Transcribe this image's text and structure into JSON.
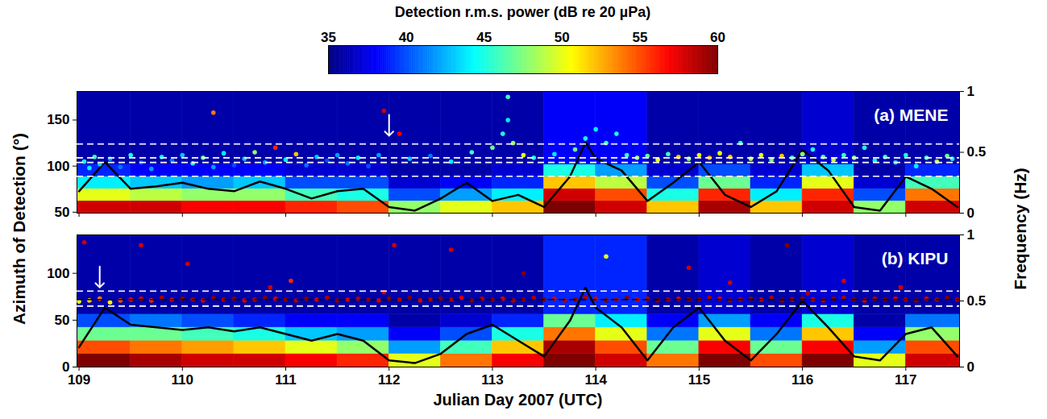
{
  "colorbar": {
    "label": "Detection r.m.s. power (dB re 20 µPa)",
    "range": [
      35,
      60
    ],
    "ticks": [
      35,
      40,
      45,
      50,
      55,
      60
    ]
  },
  "ylabel": "Azimuth of Detection (°)",
  "y2label": "Frequency (Hz)",
  "chart_data": [
    {
      "type": "scatter",
      "title": "(a) MENE",
      "xlim": [
        108.98,
        117.52
      ],
      "xticks": [
        109,
        110,
        111,
        112,
        113,
        114,
        115,
        116,
        117
      ],
      "ylim": [
        49,
        181
      ],
      "yticks": [
        50,
        100,
        150
      ],
      "y2lim": [
        0,
        1
      ],
      "y2ticks": [
        0,
        0.5,
        1
      ],
      "tick_labels": "y",
      "spectrogram": {
        "x_edges": [
          108.98,
          109.5,
          110,
          110.5,
          111,
          111.5,
          112,
          112.5,
          113,
          113.5,
          114,
          114.5,
          115,
          115.5,
          116,
          116.5,
          117,
          117.52
        ],
        "y2_edges": [
          0,
          0.1,
          0.2,
          0.3,
          0.4,
          1
        ],
        "cells": [
          [
            58,
            58,
            57,
            57,
            56,
            55,
            48,
            50,
            52,
            60,
            58,
            52,
            59,
            52,
            58,
            48,
            58
          ],
          [
            50,
            49,
            48,
            48,
            46,
            45,
            40,
            42,
            44,
            58,
            55,
            45,
            56,
            44,
            56,
            40,
            54
          ],
          [
            44,
            43,
            42,
            43,
            40,
            40,
            37,
            38,
            39,
            52,
            49,
            40,
            47,
            39,
            50,
            37,
            46
          ],
          [
            39,
            38,
            38,
            38,
            37,
            37,
            36,
            36,
            37,
            45,
            42,
            37,
            40,
            37,
            43,
            36,
            39
          ],
          [
            36,
            36,
            36,
            36,
            36,
            36,
            36,
            36,
            36,
            38,
            38,
            36,
            36,
            36,
            37,
            36,
            36
          ]
        ]
      },
      "frequency_line": {
        "axis": "y2",
        "color": "#000000",
        "x": [
          109.0,
          109.25,
          109.5,
          109.75,
          110.0,
          110.25,
          110.5,
          110.75,
          111.0,
          111.25,
          111.5,
          111.75,
          112.0,
          112.25,
          112.5,
          112.75,
          113.0,
          113.25,
          113.5,
          113.75,
          113.9,
          114.0,
          114.25,
          114.5,
          114.75,
          115.0,
          115.25,
          115.5,
          115.75,
          116.0,
          116.25,
          116.5,
          116.75,
          117.0,
          117.25,
          117.5
        ],
        "values": [
          0.18,
          0.42,
          0.2,
          0.22,
          0.25,
          0.2,
          0.18,
          0.26,
          0.2,
          0.12,
          0.18,
          0.2,
          0.05,
          0.02,
          0.12,
          0.25,
          0.1,
          0.15,
          0.05,
          0.3,
          0.58,
          0.45,
          0.35,
          0.1,
          0.25,
          0.42,
          0.15,
          0.05,
          0.18,
          0.52,
          0.35,
          0.05,
          0.02,
          0.3,
          0.2,
          0.05
        ]
      },
      "detections": {
        "x": [
          109.05,
          109.1,
          109.15,
          109.2,
          109.3,
          109.4,
          109.5,
          109.6,
          109.7,
          109.8,
          109.9,
          110.0,
          110.1,
          110.2,
          110.3,
          110.4,
          110.5,
          110.6,
          110.7,
          110.8,
          110.9,
          111.0,
          111.1,
          111.2,
          111.3,
          111.4,
          111.5,
          111.6,
          111.7,
          111.8,
          111.9,
          112.1,
          112.2,
          112.4,
          112.6,
          112.8,
          113.0,
          113.1,
          113.15,
          113.2,
          113.3,
          113.4,
          113.6,
          113.8,
          113.9,
          114.0,
          114.1,
          114.2,
          114.3,
          114.4,
          114.5,
          114.6,
          114.7,
          114.8,
          114.9,
          115.0,
          115.1,
          115.2,
          115.3,
          115.4,
          115.5,
          115.6,
          115.7,
          115.8,
          115.9,
          116.0,
          116.1,
          116.2,
          116.3,
          116.4,
          116.5,
          116.6,
          116.7,
          116.8,
          116.9,
          117.0,
          117.1,
          117.2,
          117.3,
          117.4,
          117.45,
          110.3,
          113.15,
          111.95
        ],
        "azimuth": [
          105,
          98,
          110,
          102,
          108,
          99,
          112,
          104,
          97,
          110,
          106,
          112,
          103,
          109,
          99,
          114,
          101,
          108,
          115,
          104,
          120,
          107,
          113,
          101,
          110,
          106,
          112,
          103,
          109,
          100,
          112,
          135,
          108,
          111,
          105,
          115,
          120,
          135,
          150,
          125,
          112,
          109,
          113,
          118,
          130,
          140,
          125,
          135,
          112,
          109,
          111,
          107,
          113,
          110,
          108,
          112,
          109,
          114,
          110,
          125,
          108,
          112,
          107,
          111,
          109,
          113,
          118,
          110,
          107,
          112,
          109,
          120,
          106,
          110,
          104,
          112,
          100,
          109,
          105,
          111,
          108,
          158,
          175,
          160
        ],
        "power": [
          45,
          44,
          46,
          43,
          42,
          41,
          45,
          40,
          42,
          44,
          41,
          43,
          45,
          47,
          42,
          44,
          40,
          43,
          48,
          42,
          56,
          44,
          52,
          41,
          43,
          40,
          42,
          41,
          44,
          40,
          42,
          57,
          43,
          41,
          44,
          46,
          47,
          45,
          44,
          48,
          50,
          45,
          44,
          47,
          45,
          44,
          46,
          45,
          46,
          48,
          47,
          50,
          46,
          52,
          48,
          51,
          53,
          50,
          52,
          46,
          49,
          50,
          47,
          52,
          46,
          48,
          45,
          47,
          49,
          46,
          48,
          45,
          44,
          46,
          43,
          45,
          44,
          46,
          49,
          47,
          45,
          54,
          46,
          58
        ]
      },
      "reference_lines": [
        {
          "values": [
            89,
            104,
            109,
            124
          ],
          "color": "#ffffff",
          "line_style": "dashed"
        }
      ],
      "arrow": {
        "x": 112.0,
        "y": 133
      }
    },
    {
      "type": "scatter",
      "title": "(b) KIPU",
      "xlabel": "Julian Day 2007 (UTC)",
      "xlim": [
        108.98,
        117.52
      ],
      "xticks": [
        109,
        110,
        111,
        112,
        113,
        114,
        115,
        116,
        117
      ],
      "ylim": [
        0,
        141
      ],
      "yticks": [
        0,
        50,
        100
      ],
      "y2lim": [
        0,
        1
      ],
      "y2ticks": [
        0,
        0.5,
        1
      ],
      "spectrogram": {
        "x_edges": [
          108.98,
          109.5,
          110,
          110.5,
          111,
          111.5,
          112,
          112.5,
          113,
          113.5,
          114,
          114.5,
          115,
          115.5,
          116,
          116.5,
          117,
          117.52
        ],
        "y2_edges": [
          0,
          0.1,
          0.2,
          0.3,
          0.4,
          1
        ],
        "cells": [
          [
            60,
            59,
            58,
            58,
            57,
            56,
            50,
            54,
            57,
            60,
            58,
            54,
            60,
            55,
            60,
            50,
            58
          ],
          [
            55,
            54,
            53,
            52,
            50,
            48,
            42,
            46,
            52,
            59,
            55,
            47,
            57,
            47,
            57,
            42,
            55
          ],
          [
            47,
            47,
            46,
            45,
            43,
            42,
            38,
            40,
            45,
            54,
            50,
            41,
            50,
            41,
            52,
            38,
            48
          ],
          [
            40,
            41,
            40,
            39,
            38,
            38,
            36,
            37,
            39,
            47,
            44,
            38,
            42,
            38,
            45,
            36,
            41
          ],
          [
            36,
            36,
            36,
            36,
            36,
            36,
            36,
            36,
            36,
            39,
            39,
            36,
            37,
            36,
            37,
            36,
            36
          ]
        ]
      },
      "frequency_line": {
        "axis": "y2",
        "color": "#000000",
        "x": [
          109.0,
          109.25,
          109.5,
          109.75,
          110.0,
          110.25,
          110.5,
          110.75,
          111.0,
          111.25,
          111.5,
          111.75,
          112.0,
          112.25,
          112.5,
          112.75,
          113.0,
          113.25,
          113.5,
          113.75,
          113.9,
          114.0,
          114.25,
          114.5,
          114.75,
          115.0,
          115.25,
          115.5,
          115.75,
          116.0,
          116.25,
          116.5,
          116.75,
          117.0,
          117.25,
          117.5
        ],
        "values": [
          0.15,
          0.45,
          0.32,
          0.3,
          0.28,
          0.3,
          0.27,
          0.3,
          0.25,
          0.2,
          0.25,
          0.2,
          0.05,
          0.03,
          0.1,
          0.25,
          0.32,
          0.2,
          0.08,
          0.35,
          0.6,
          0.45,
          0.3,
          0.05,
          0.3,
          0.45,
          0.2,
          0.05,
          0.25,
          0.5,
          0.3,
          0.08,
          0.05,
          0.25,
          0.3,
          0.08
        ]
      },
      "detections": {
        "x": [
          109.0,
          109.1,
          109.2,
          109.3,
          109.4,
          109.5,
          109.6,
          109.7,
          109.8,
          109.9,
          110.0,
          110.1,
          110.2,
          110.3,
          110.4,
          110.5,
          110.6,
          110.7,
          110.8,
          110.9,
          111.0,
          111.1,
          111.2,
          111.3,
          111.4,
          111.5,
          111.6,
          111.7,
          111.8,
          111.9,
          112.0,
          112.1,
          112.2,
          112.3,
          112.4,
          112.5,
          112.6,
          112.7,
          112.8,
          112.9,
          113.0,
          113.1,
          113.2,
          113.3,
          113.4,
          113.5,
          113.6,
          113.7,
          113.8,
          113.9,
          114.0,
          114.1,
          114.2,
          114.3,
          114.4,
          114.5,
          114.6,
          114.7,
          114.8,
          114.9,
          115.0,
          115.1,
          115.2,
          115.3,
          115.4,
          115.5,
          115.6,
          115.7,
          115.8,
          115.9,
          116.0,
          116.1,
          116.2,
          116.3,
          116.4,
          116.5,
          116.6,
          116.7,
          116.8,
          116.9,
          117.0,
          117.1,
          117.2,
          117.3,
          117.4,
          117.5,
          109.6,
          110.05,
          110.85,
          111.05,
          111.95,
          112.6,
          113.3,
          114.1,
          114.9,
          115.3,
          115.85,
          116.4,
          116.95,
          116.05,
          109.05,
          112.05
        ],
        "azimuth": [
          70,
          71,
          73,
          69,
          71,
          72,
          73,
          71,
          74,
          72,
          73,
          72,
          71,
          74,
          72,
          73,
          71,
          72,
          74,
          73,
          72,
          71,
          73,
          72,
          74,
          71,
          72,
          73,
          72,
          71,
          73,
          72,
          74,
          71,
          72,
          73,
          72,
          74,
          71,
          73,
          72,
          73,
          71,
          72,
          74,
          72,
          73,
          71,
          72,
          74,
          73,
          71,
          72,
          74,
          72,
          73,
          71,
          72,
          73,
          72,
          72,
          74,
          73,
          71,
          72,
          73,
          72,
          74,
          71,
          72,
          73,
          72,
          71,
          73,
          74,
          72,
          71,
          73,
          72,
          73,
          72,
          71,
          73,
          72,
          74,
          72,
          130,
          110,
          85,
          92,
          80,
          125,
          100,
          118,
          106,
          90,
          130,
          92,
          85,
          79,
          133,
          130
        ],
        "power": [
          50,
          52,
          54,
          51,
          55,
          57,
          58,
          56,
          59,
          58,
          60,
          59,
          58,
          60,
          59,
          60,
          58,
          59,
          60,
          58,
          60,
          59,
          60,
          58,
          59,
          60,
          58,
          59,
          60,
          58,
          60,
          59,
          60,
          58,
          59,
          60,
          59,
          58,
          60,
          59,
          60,
          58,
          59,
          60,
          59,
          60,
          58,
          59,
          60,
          59,
          58,
          60,
          59,
          60,
          58,
          59,
          60,
          59,
          58,
          60,
          60,
          59,
          58,
          60,
          59,
          60,
          58,
          59,
          60,
          59,
          60,
          58,
          59,
          60,
          59,
          60,
          58,
          59,
          60,
          58,
          59,
          60,
          58,
          59,
          60,
          59,
          58,
          58,
          58,
          56,
          58,
          58,
          60,
          50,
          58,
          58,
          60,
          58,
          58,
          59,
          58,
          58
        ]
      },
      "reference_lines": [
        {
          "values": [
            65,
            81
          ],
          "color": "#ffffff",
          "line_style": "dashed"
        },
        {
          "values": [
            72
          ],
          "color": "#000000",
          "line_style": "dashed"
        }
      ],
      "arrow": {
        "x": 109.2,
        "y": 85
      }
    }
  ]
}
